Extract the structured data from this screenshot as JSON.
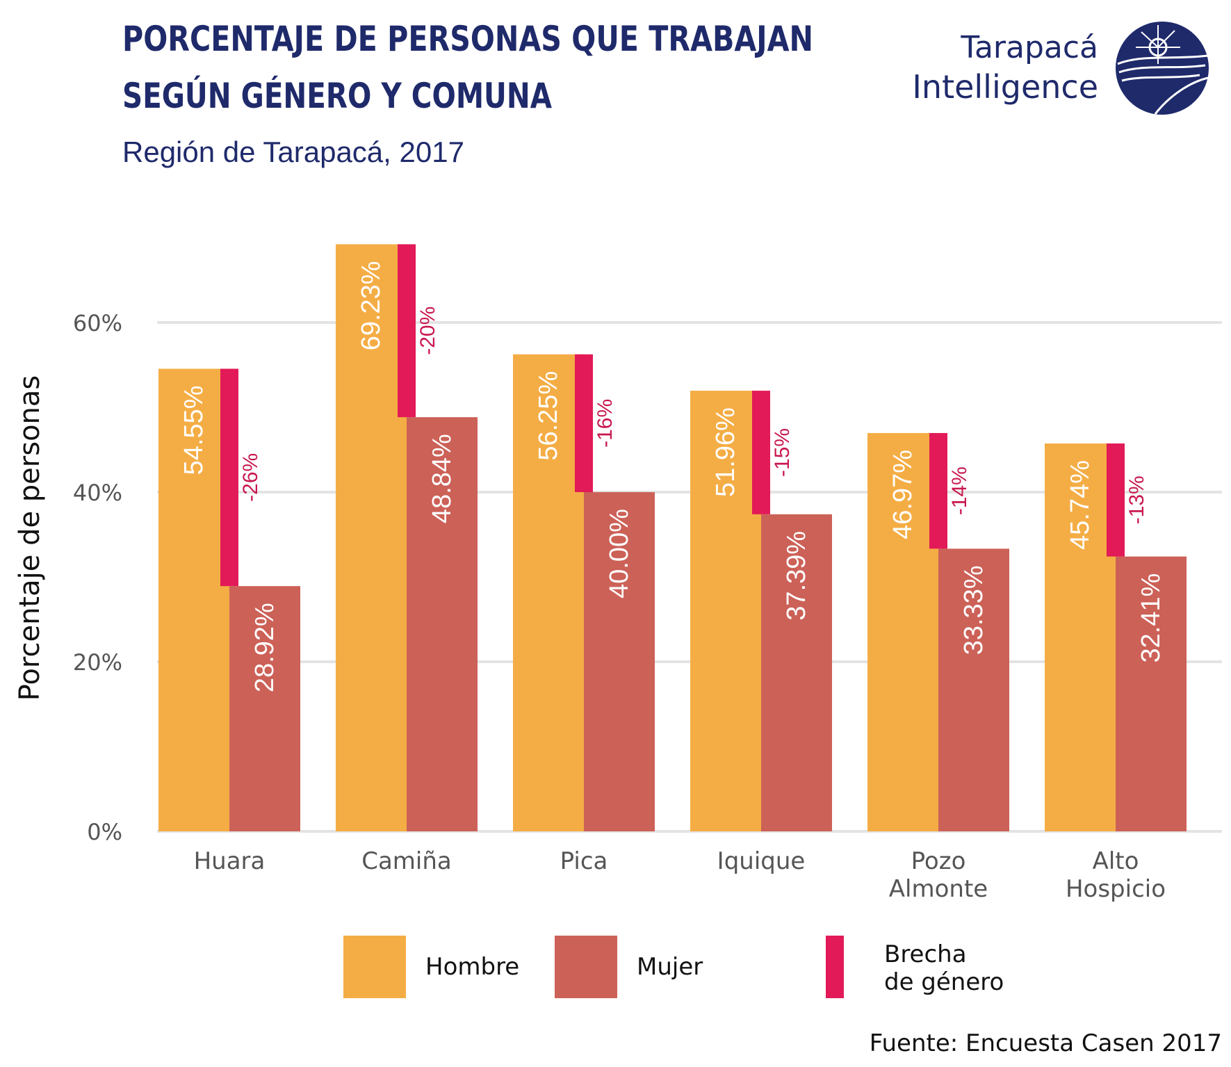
{
  "header": {
    "title_line1": "PORCENTAJE DE PERSONAS QUE TRABAJAN",
    "title_line2": "SEGÚN GÉNERO Y COMUNA",
    "subtitle": "Región de Tarapacá, 2017"
  },
  "brand": {
    "name_line1": "Tarapacá",
    "name_line2": "Intelligence",
    "logo_icon": "tarapaca-intelligence-logo"
  },
  "source": "Fuente: Encuesta Casen 2017",
  "colors": {
    "hombre": "#f4ad45",
    "mujer": "#cc6157",
    "brecha": "#e21a57",
    "brecha_text": "#c8174e",
    "grid": "#e3e3e3",
    "navy": "#1f2a6b"
  },
  "chart_data": {
    "type": "bar",
    "categories": [
      [
        "Huara"
      ],
      [
        "Camiña"
      ],
      [
        "Pica"
      ],
      [
        "Iquique"
      ],
      [
        "Pozo",
        "Almonte"
      ],
      [
        "Alto",
        "Hospicio"
      ]
    ],
    "series": [
      {
        "name": "Hombre",
        "values": [
          54.55,
          69.23,
          56.25,
          51.96,
          46.97,
          45.74
        ],
        "labels": [
          "54.55%",
          "69.23%",
          "56.25%",
          "51.96%",
          "46.97%",
          "45.74%"
        ]
      },
      {
        "name": "Mujer",
        "values": [
          28.92,
          48.84,
          40.0,
          37.39,
          33.33,
          32.41
        ],
        "labels": [
          "28.92%",
          "48.84%",
          "40.00%",
          "37.39%",
          "33.33%",
          "32.41%"
        ]
      }
    ],
    "gap": {
      "name": "Brecha de género",
      "labels": [
        "-26%",
        "-20%",
        "-16%",
        "-15%",
        "-14%",
        "-13%"
      ]
    },
    "ylabel": "Porcentaje de personas",
    "ylim": [
      0,
      70
    ],
    "yticks": [
      0,
      20,
      40,
      60
    ],
    "ytick_labels": [
      "0%",
      "20%",
      "40%",
      "60%"
    ],
    "grid": true,
    "legend": {
      "placement": "bottom",
      "items": [
        {
          "label_lines": [
            "Hombre"
          ]
        },
        {
          "label_lines": [
            "Mujer"
          ]
        },
        {
          "label_lines": [
            "Brecha",
            "de género"
          ]
        }
      ]
    }
  }
}
